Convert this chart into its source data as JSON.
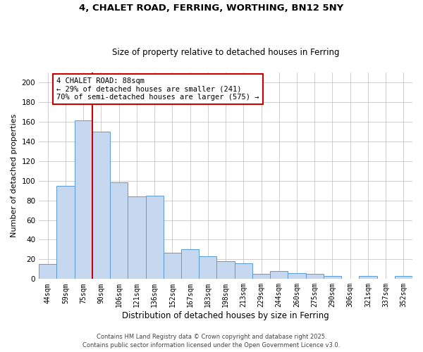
{
  "title1": "4, CHALET ROAD, FERRING, WORTHING, BN12 5NY",
  "title2": "Size of property relative to detached houses in Ferring",
  "xlabel": "Distribution of detached houses by size in Ferring",
  "ylabel": "Number of detached properties",
  "categories": [
    "44sqm",
    "59sqm",
    "75sqm",
    "90sqm",
    "106sqm",
    "121sqm",
    "136sqm",
    "152sqm",
    "167sqm",
    "183sqm",
    "198sqm",
    "213sqm",
    "229sqm",
    "244sqm",
    "260sqm",
    "275sqm",
    "290sqm",
    "306sqm",
    "321sqm",
    "337sqm",
    "352sqm"
  ],
  "values": [
    15,
    95,
    161,
    150,
    98,
    84,
    85,
    27,
    30,
    23,
    18,
    16,
    5,
    8,
    6,
    5,
    3,
    0,
    3,
    0,
    3
  ],
  "bar_color": "#c5d8f0",
  "bar_edge_color": "#5b9bd5",
  "vline_index": 3,
  "vline_color": "#cc0000",
  "annotation_line1": "4 CHALET ROAD: 88sqm",
  "annotation_line2": "← 29% of detached houses are smaller (241)",
  "annotation_line3": "70% of semi-detached houses are larger (575) →",
  "annotation_box_color": "#cc0000",
  "ylim": [
    0,
    210
  ],
  "yticks": [
    0,
    20,
    40,
    60,
    80,
    100,
    120,
    140,
    160,
    180,
    200
  ],
  "grid_color": "#c8c8c8",
  "background_color": "#ffffff",
  "footnote1": "Contains HM Land Registry data © Crown copyright and database right 2025.",
  "footnote2": "Contains public sector information licensed under the Open Government Licence v3.0."
}
